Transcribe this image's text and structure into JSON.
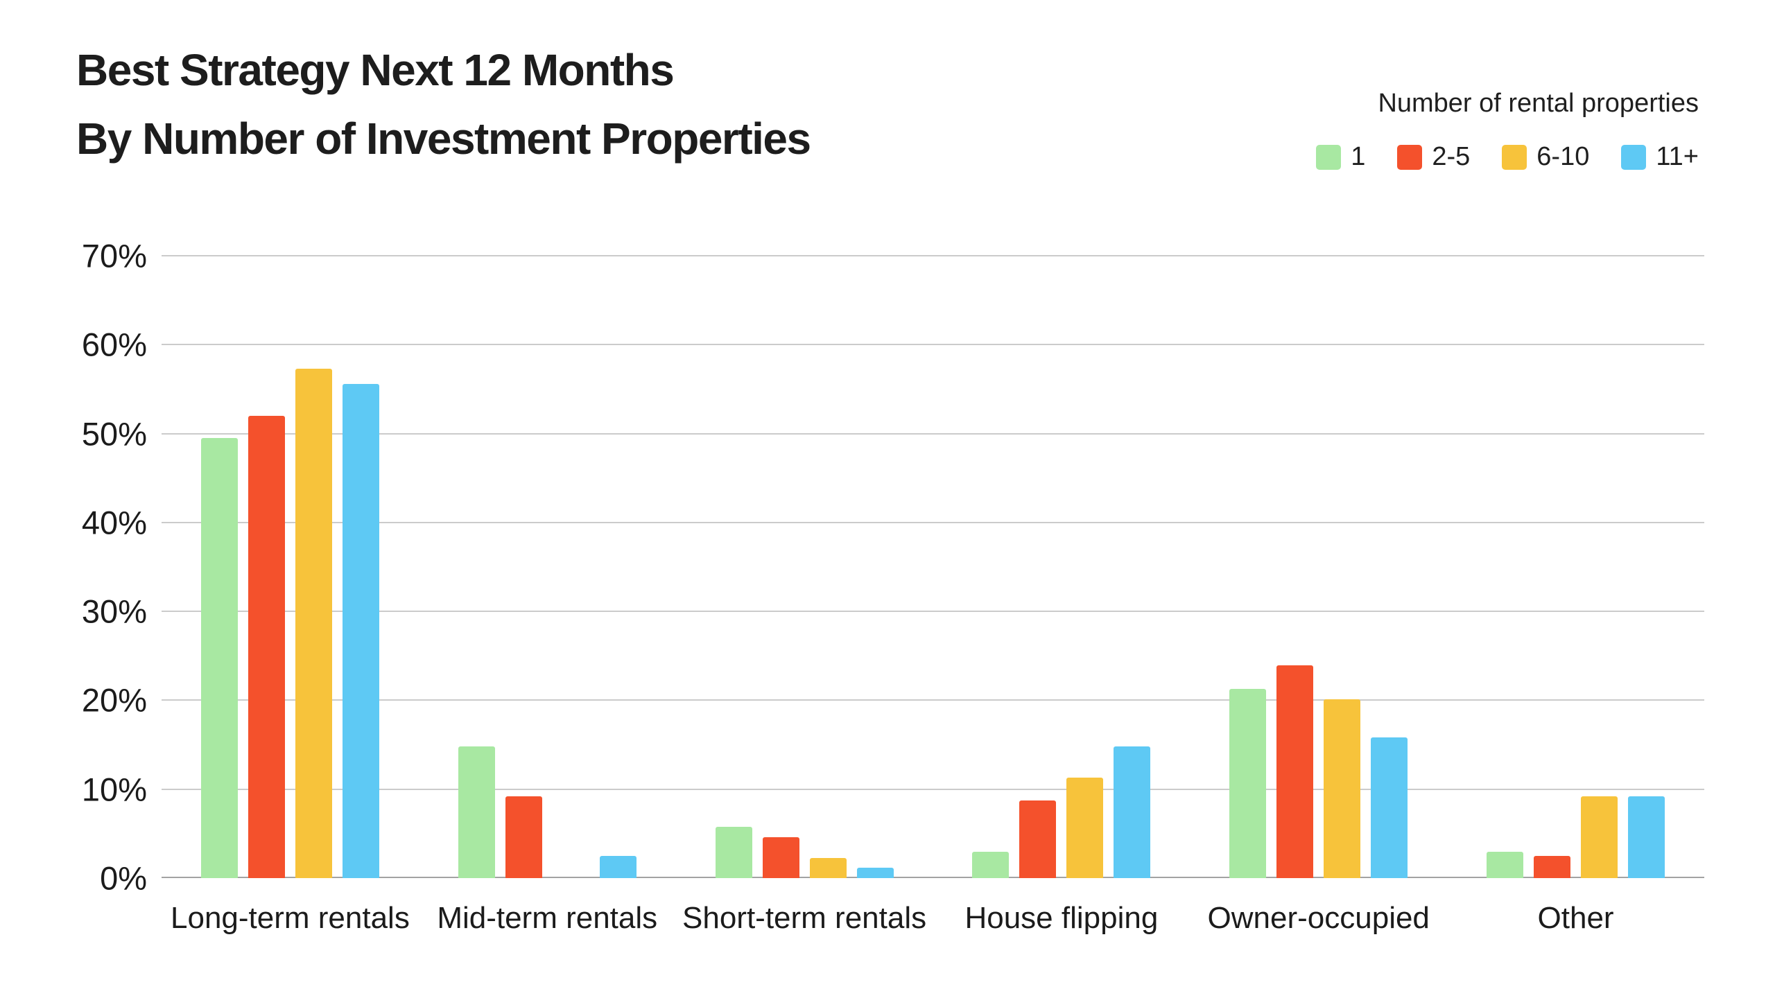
{
  "title": {
    "line1": "Best Strategy Next 12 Months",
    "line2": "By Number of Investment Properties"
  },
  "legend": {
    "title": "Number of rental properties"
  },
  "colors": {
    "background": "#ffffff",
    "text": "#1d1d1d",
    "gridline": "#cbcbcb",
    "axis_line": "#a3a3a3"
  },
  "chart_data": {
    "type": "bar",
    "title": "Best Strategy Next 12 Months By Number of Investment Properties",
    "legend_title": "Number of rental properties",
    "legend_position": "top-right",
    "grid": true,
    "categories": [
      "Long-term rentals",
      "Mid-term rentals",
      "Short-term rentals",
      "House flipping",
      "Owner-occupied",
      "Other"
    ],
    "series": [
      {
        "name": "1",
        "color": "#a8e8a2",
        "values": [
          49.5,
          14.8,
          5.8,
          3.0,
          21.3,
          3.0
        ]
      },
      {
        "name": "2-5",
        "color": "#f4512c",
        "values": [
          52.0,
          9.2,
          4.6,
          8.7,
          23.9,
          2.5
        ]
      },
      {
        "name": "6-10",
        "color": "#f7c33b",
        "values": [
          57.3,
          0.0,
          2.3,
          11.3,
          20.1,
          9.2
        ]
      },
      {
        "name": "11+",
        "color": "#5ec9f4",
        "values": [
          55.6,
          2.5,
          1.2,
          14.8,
          15.8,
          9.2
        ]
      }
    ],
    "xlabel": "",
    "ylabel": "",
    "ylim": [
      0,
      70
    ],
    "ytick_step": 10,
    "ytick_format": "percent"
  }
}
